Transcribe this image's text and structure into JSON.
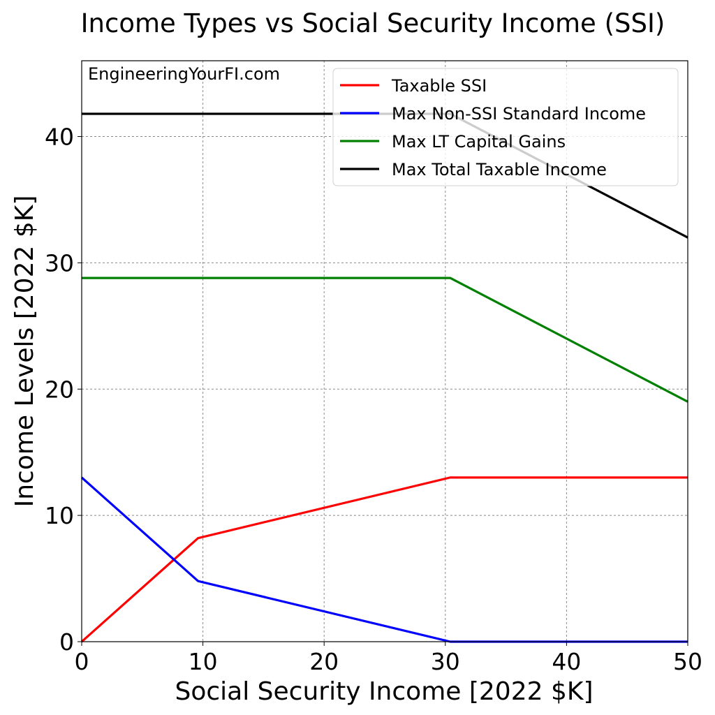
{
  "chart_data": {
    "type": "line",
    "title": "Income Types vs Social Security Income (SSI)",
    "xlabel": "Social Security Income [2022 $K]",
    "ylabel": "Income Levels [2022 $K]",
    "watermark": "EngineeringYourFI.com",
    "xlim": [
      0,
      50
    ],
    "ylim": [
      0,
      46
    ],
    "xticks": [
      0,
      10,
      20,
      30,
      40,
      50
    ],
    "yticks": [
      0,
      10,
      20,
      30,
      40
    ],
    "grid": true,
    "legend_position": "top-right",
    "series": [
      {
        "name": "Taxable SSI",
        "color": "#ff0000",
        "points": [
          [
            0,
            0
          ],
          [
            9.6,
            8.2
          ],
          [
            30.4,
            13.0
          ],
          [
            50,
            13.0
          ]
        ]
      },
      {
        "name": "Max Non-SSI Standard Income",
        "color": "#0000ff",
        "points": [
          [
            0,
            13.0
          ],
          [
            9.6,
            4.8
          ],
          [
            30.4,
            0
          ],
          [
            50,
            0
          ]
        ]
      },
      {
        "name": "Max LT Capital Gains",
        "color": "#008000",
        "points": [
          [
            0,
            28.8
          ],
          [
            30.4,
            28.8
          ],
          [
            50,
            19.0
          ]
        ]
      },
      {
        "name": "Max Total Taxable Income",
        "color": "#000000",
        "points": [
          [
            0,
            41.8
          ],
          [
            30.4,
            41.8
          ],
          [
            50,
            32.0
          ]
        ]
      }
    ]
  }
}
